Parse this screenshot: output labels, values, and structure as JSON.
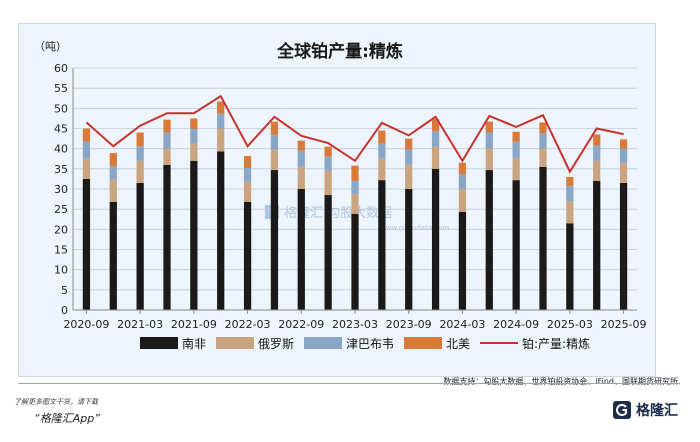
{
  "chart_data": {
    "type": "bar",
    "title": "全球铂产量:精炼",
    "unit_label": "（吨）",
    "ylim": [
      0,
      60
    ],
    "yticks": [
      0,
      5,
      10,
      15,
      20,
      25,
      30,
      35,
      40,
      45,
      50,
      55,
      60
    ],
    "x_tick_labels": [
      "2020-09",
      "2021-03",
      "2021-09",
      "2022-03",
      "2022-09",
      "2023-03",
      "2023-09",
      "2024-03",
      "2024-09",
      "2025-03",
      "2025-09"
    ],
    "categories": [
      "2020-09",
      "2020-12",
      "2021-03",
      "2021-06",
      "2021-09",
      "2021-12",
      "2022-03",
      "2022-06",
      "2022-09",
      "2022-12",
      "2023-03",
      "2023-06",
      "2023-09",
      "2023-12",
      "2024-03",
      "2024-06",
      "2024-09",
      "2024-12",
      "2025-03",
      "2025-06",
      "2025-09"
    ],
    "stacked_series": [
      {
        "name": "南非",
        "color": "#1a1a1a",
        "values": [
          32.5,
          26.8,
          31.5,
          36.0,
          37.0,
          39.3,
          26.8,
          34.7,
          30.0,
          28.5,
          23.8,
          32.2,
          30.0,
          35.0,
          24.3,
          34.7,
          32.2,
          35.5,
          21.5,
          32.0,
          31.5
        ]
      },
      {
        "name": "俄罗斯",
        "color": "#c9a47e",
        "values": [
          5.0,
          5.5,
          5.5,
          4.0,
          4.3,
          5.7,
          5.0,
          5.0,
          5.5,
          6.0,
          5.0,
          5.3,
          6.0,
          5.5,
          5.7,
          5.3,
          5.5,
          4.5,
          5.5,
          5.0,
          5.0
        ]
      },
      {
        "name": "津巴布韦",
        "color": "#8aa6c6",
        "values": [
          4.3,
          3.4,
          3.6,
          4.0,
          3.6,
          3.7,
          3.4,
          3.8,
          4.0,
          3.5,
          3.2,
          3.8,
          3.8,
          3.8,
          3.7,
          4.0,
          4.0,
          3.8,
          3.8,
          3.8,
          3.5
        ]
      },
      {
        "name": "北美",
        "color": "#d97a3a",
        "values": [
          3.2,
          3.2,
          3.4,
          3.2,
          2.6,
          3.0,
          3.0,
          3.2,
          2.5,
          2.5,
          3.8,
          3.2,
          2.7,
          3.0,
          2.8,
          2.7,
          2.5,
          2.7,
          2.2,
          2.7,
          2.3
        ]
      }
    ],
    "line_series": {
      "name": "铂:产量:精炼",
      "color": "#c8312e",
      "values": [
        46.5,
        40.6,
        45.7,
        48.8,
        48.8,
        53.0,
        40.6,
        47.9,
        43.2,
        41.4,
        37.0,
        46.4,
        43.3,
        47.9,
        37.0,
        48.1,
        45.4,
        48.3,
        34.3,
        45.0,
        43.6
      ]
    },
    "legend_position": "bottom",
    "grid": true
  },
  "watermark": {
    "text": "格隆汇  勾股大数据",
    "url": "www.gogudata.com"
  },
  "footer": {
    "source": "数据支持：勾股大数据、世界铂投资协会、iFind、国联期货研究所",
    "line1": "了解更多图文干货，请下载",
    "line2": "“格隆汇App”",
    "brand": "格隆汇",
    "brand_icon": "gelonghui-logo-icon"
  }
}
